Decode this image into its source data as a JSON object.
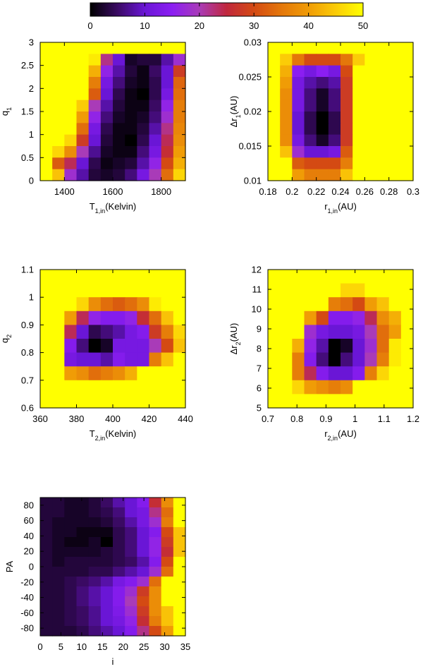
{
  "colorbar": {
    "min": 0,
    "max": 50,
    "ticks": [
      0,
      10,
      20,
      30,
      40,
      50
    ],
    "tick_labels": [
      "0",
      "10",
      "20",
      "30",
      "40",
      "50"
    ],
    "colormap": [
      "#000000",
      "#3a0a63",
      "#6a16d6",
      "#8b1ef2",
      "#a93bb8",
      "#c0273d",
      "#d44a13",
      "#e4770a",
      "#f09c06",
      "#fbcc07",
      "#ffff00"
    ]
  },
  "chart_data": [
    {
      "id": "p1",
      "type": "heatmap",
      "xlabel": "T",
      "xlabel_sub": "1,in",
      "xlabel_suffix": "(Kelvin)",
      "ylabel": "q",
      "ylabel_sub": "1",
      "ylabel_suffix": "",
      "xlim": [
        1300,
        1900
      ],
      "ylim": [
        0,
        3
      ],
      "xticks": [
        1400,
        1600,
        1800
      ],
      "xtick_labels": [
        "1400",
        "1600",
        "1800"
      ],
      "yticks": [
        0,
        0.5,
        1,
        1.5,
        2,
        2.5,
        3
      ],
      "ytick_labels": [
        "0",
        "0.5",
        "1",
        "1.5",
        "2",
        "2.5",
        "3"
      ],
      "grid": false,
      "values": [
        [
          50,
          50,
          50,
          50,
          50,
          50,
          50,
          50,
          50,
          50,
          50,
          50
        ],
        [
          50,
          50,
          50,
          50,
          48,
          22,
          10,
          2,
          3,
          3,
          8,
          18
        ],
        [
          50,
          50,
          50,
          50,
          42,
          16,
          8,
          3,
          1,
          5,
          10,
          28
        ],
        [
          50,
          50,
          50,
          50,
          36,
          12,
          6,
          2,
          1,
          4,
          10,
          33
        ],
        [
          50,
          50,
          50,
          50,
          32,
          10,
          4,
          1,
          0,
          4,
          12,
          34
        ],
        [
          50,
          50,
          50,
          45,
          20,
          8,
          3,
          1,
          1,
          5,
          16,
          36
        ],
        [
          50,
          50,
          50,
          40,
          16,
          6,
          2,
          1,
          2,
          6,
          18,
          36
        ],
        [
          50,
          50,
          50,
          34,
          12,
          4,
          1,
          1,
          3,
          8,
          22,
          37
        ],
        [
          50,
          50,
          46,
          28,
          10,
          3,
          1,
          0,
          4,
          10,
          24,
          38
        ],
        [
          50,
          46,
          38,
          20,
          7,
          2,
          1,
          1,
          6,
          12,
          26,
          40
        ],
        [
          50,
          32,
          24,
          10,
          4,
          1,
          2,
          3,
          8,
          16,
          30,
          42
        ],
        [
          50,
          44,
          18,
          8,
          3,
          2,
          3,
          6,
          12,
          20,
          34,
          46
        ]
      ]
    },
    {
      "id": "p2",
      "type": "heatmap",
      "xlabel": "r",
      "xlabel_sub": "1,in",
      "xlabel_suffix": "(AU)",
      "ylabel": "Δr",
      "ylabel_sub": "1",
      "ylabel_suffix": "(AU)",
      "xlim": [
        0.18,
        0.3
      ],
      "ylim": [
        0.01,
        0.03
      ],
      "xticks": [
        0.18,
        0.2,
        0.22,
        0.24,
        0.26,
        0.28,
        0.3
      ],
      "xtick_labels": [
        "0.18",
        "0.2",
        "0.22",
        "0.24",
        "0.26",
        "0.28",
        "0.3"
      ],
      "yticks": [
        0.01,
        0.015,
        0.02,
        0.025,
        0.03
      ],
      "ytick_labels": [
        "0.01",
        "0.015",
        "0.02",
        "0.025",
        "0.03"
      ],
      "grid": false,
      "values": [
        [
          50,
          50,
          50,
          50,
          50,
          50,
          50,
          50,
          50,
          50,
          50,
          50
        ],
        [
          50,
          45,
          35,
          30,
          30,
          30,
          35,
          45,
          50,
          50,
          50,
          50
        ],
        [
          50,
          42,
          15,
          12,
          15,
          12,
          30,
          50,
          50,
          50,
          50,
          50
        ],
        [
          50,
          40,
          12,
          8,
          6,
          8,
          28,
          50,
          50,
          50,
          50,
          50
        ],
        [
          50,
          38,
          12,
          6,
          2,
          6,
          28,
          50,
          50,
          50,
          50,
          50
        ],
        [
          50,
          38,
          12,
          6,
          2,
          6,
          28,
          50,
          50,
          50,
          50,
          50
        ],
        [
          50,
          38,
          10,
          4,
          0,
          4,
          28,
          50,
          50,
          50,
          50,
          50
        ],
        [
          50,
          38,
          10,
          4,
          0,
          4,
          28,
          50,
          50,
          50,
          50,
          50
        ],
        [
          50,
          38,
          12,
          6,
          2,
          6,
          28,
          50,
          50,
          50,
          50,
          50
        ],
        [
          50,
          44,
          18,
          10,
          10,
          12,
          32,
          50,
          50,
          50,
          50,
          50
        ],
        [
          50,
          50,
          32,
          30,
          30,
          30,
          36,
          50,
          50,
          50,
          50,
          50
        ],
        [
          50,
          50,
          40,
          36,
          36,
          36,
          44,
          50,
          50,
          50,
          50,
          50
        ]
      ]
    },
    {
      "id": "p3",
      "type": "heatmap",
      "xlabel": "T",
      "xlabel_sub": "2,in",
      "xlabel_suffix": "(Kelvin)",
      "ylabel": "q",
      "ylabel_sub": "2",
      "ylabel_suffix": "",
      "xlim": [
        360,
        440
      ],
      "ylim": [
        0.6,
        1.1
      ],
      "xticks": [
        360,
        380,
        400,
        420,
        440
      ],
      "xtick_labels": [
        "360",
        "380",
        "400",
        "420",
        "440"
      ],
      "yticks": [
        0.6,
        0.7,
        0.8,
        0.9,
        1,
        1.1
      ],
      "ytick_labels": [
        "0.6",
        "0.7",
        "0.8",
        "0.9",
        "1",
        "1.1"
      ],
      "grid": false,
      "values": [
        [
          50,
          50,
          50,
          50,
          50,
          50,
          50,
          50,
          50,
          50,
          50,
          50
        ],
        [
          50,
          50,
          50,
          50,
          50,
          50,
          50,
          50,
          50,
          50,
          50,
          50
        ],
        [
          50,
          50,
          50,
          46,
          38,
          34,
          32,
          34,
          38,
          48,
          50,
          50
        ],
        [
          50,
          50,
          40,
          24,
          16,
          14,
          14,
          16,
          26,
          34,
          44,
          50
        ],
        [
          50,
          50,
          24,
          10,
          4,
          6,
          8,
          12,
          14,
          28,
          36,
          46
        ],
        [
          50,
          50,
          14,
          6,
          0,
          2,
          12,
          12,
          12,
          20,
          30,
          44
        ],
        [
          50,
          50,
          12,
          10,
          10,
          8,
          14,
          12,
          12,
          36,
          44,
          50
        ],
        [
          50,
          50,
          40,
          38,
          34,
          36,
          38,
          42,
          50,
          50,
          50,
          50
        ],
        [
          50,
          50,
          50,
          50,
          50,
          50,
          50,
          50,
          50,
          50,
          50,
          50
        ],
        [
          50,
          50,
          50,
          50,
          50,
          50,
          50,
          50,
          50,
          50,
          50,
          50
        ]
      ]
    },
    {
      "id": "p4",
      "type": "heatmap",
      "xlabel": "r",
      "xlabel_sub": "2,in",
      "xlabel_suffix": "(AU)",
      "ylabel": "Δr",
      "ylabel_sub": "2",
      "ylabel_suffix": "(AU)",
      "xlim": [
        0.7,
        1.2
      ],
      "ylim": [
        5,
        12
      ],
      "xticks": [
        0.7,
        0.8,
        0.9,
        1,
        1.1,
        1.2
      ],
      "xtick_labels": [
        "0.7",
        "0.8",
        "0.9",
        "1",
        "1.1",
        "1.2"
      ],
      "yticks": [
        5,
        6,
        7,
        8,
        9,
        10,
        11,
        12
      ],
      "ytick_labels": [
        "5",
        "6",
        "7",
        "8",
        "9",
        "10",
        "11",
        "12"
      ],
      "grid": false,
      "values": [
        [
          50,
          50,
          50,
          50,
          50,
          50,
          50,
          50,
          50,
          50,
          50,
          50
        ],
        [
          50,
          50,
          50,
          50,
          50,
          50,
          46,
          46,
          50,
          50,
          50,
          50
        ],
        [
          50,
          50,
          50,
          50,
          50,
          36,
          34,
          30,
          40,
          44,
          50,
          50
        ],
        [
          50,
          50,
          50,
          40,
          30,
          14,
          14,
          16,
          24,
          38,
          42,
          50
        ],
        [
          50,
          50,
          50,
          18,
          12,
          10,
          10,
          12,
          20,
          34,
          40,
          50
        ],
        [
          50,
          50,
          42,
          16,
          8,
          0,
          2,
          10,
          18,
          34,
          48,
          50
        ],
        [
          50,
          50,
          36,
          14,
          6,
          0,
          6,
          10,
          20,
          36,
          48,
          50
        ],
        [
          50,
          50,
          36,
          24,
          14,
          10,
          10,
          14,
          36,
          46,
          50,
          50
        ],
        [
          50,
          50,
          46,
          40,
          38,
          36,
          38,
          50,
          50,
          50,
          50,
          50
        ],
        [
          50,
          50,
          50,
          50,
          50,
          50,
          50,
          50,
          50,
          50,
          50,
          50
        ]
      ]
    },
    {
      "id": "p5",
      "type": "heatmap",
      "xlabel": "i",
      "xlabel_sub": "",
      "xlabel_suffix": "",
      "ylabel": "PA",
      "ylabel_sub": "",
      "ylabel_suffix": "",
      "xlim": [
        0,
        35
      ],
      "ylim": [
        -90,
        90
      ],
      "xticks": [
        0,
        5,
        10,
        15,
        20,
        25,
        30,
        35
      ],
      "xtick_labels": [
        "0",
        "5",
        "10",
        "15",
        "20",
        "25",
        "30",
        "35"
      ],
      "yticks": [
        -80,
        -60,
        -40,
        -20,
        0,
        20,
        40,
        60,
        80
      ],
      "ytick_labels": [
        "-80",
        "-60",
        "-40",
        "-20",
        "0",
        "20",
        "40",
        "60",
        "80"
      ],
      "grid": false,
      "values": [
        [
          3,
          3,
          2,
          2,
          3,
          5,
          8,
          10,
          14,
          26,
          38,
          50
        ],
        [
          3,
          3,
          2,
          2,
          3,
          4,
          6,
          10,
          12,
          22,
          34,
          50
        ],
        [
          3,
          2,
          2,
          2,
          2,
          3,
          5,
          8,
          12,
          18,
          36,
          50
        ],
        [
          3,
          2,
          2,
          1,
          1,
          1,
          4,
          6,
          10,
          14,
          30,
          44
        ],
        [
          3,
          2,
          1,
          1,
          2,
          0,
          4,
          6,
          10,
          16,
          28,
          44
        ],
        [
          3,
          2,
          2,
          2,
          2,
          3,
          4,
          6,
          10,
          16,
          26,
          44
        ],
        [
          3,
          2,
          3,
          3,
          3,
          3,
          4,
          5,
          8,
          14,
          30,
          50
        ],
        [
          3,
          3,
          3,
          3,
          4,
          4,
          6,
          8,
          10,
          18,
          34,
          50
        ],
        [
          3,
          3,
          4,
          5,
          6,
          8,
          12,
          14,
          18,
          34,
          50,
          50
        ],
        [
          3,
          3,
          4,
          6,
          8,
          10,
          14,
          18,
          28,
          38,
          50,
          50
        ],
        [
          3,
          3,
          4,
          6,
          8,
          10,
          14,
          20,
          30,
          38,
          50,
          50
        ],
        [
          3,
          3,
          4,
          5,
          7,
          10,
          13,
          18,
          28,
          38,
          44,
          50
        ],
        [
          3,
          3,
          4,
          5,
          7,
          10,
          12,
          16,
          26,
          36,
          44,
          50
        ],
        [
          3,
          3,
          3,
          4,
          6,
          8,
          10,
          14,
          22,
          30,
          40,
          50
        ]
      ]
    }
  ]
}
